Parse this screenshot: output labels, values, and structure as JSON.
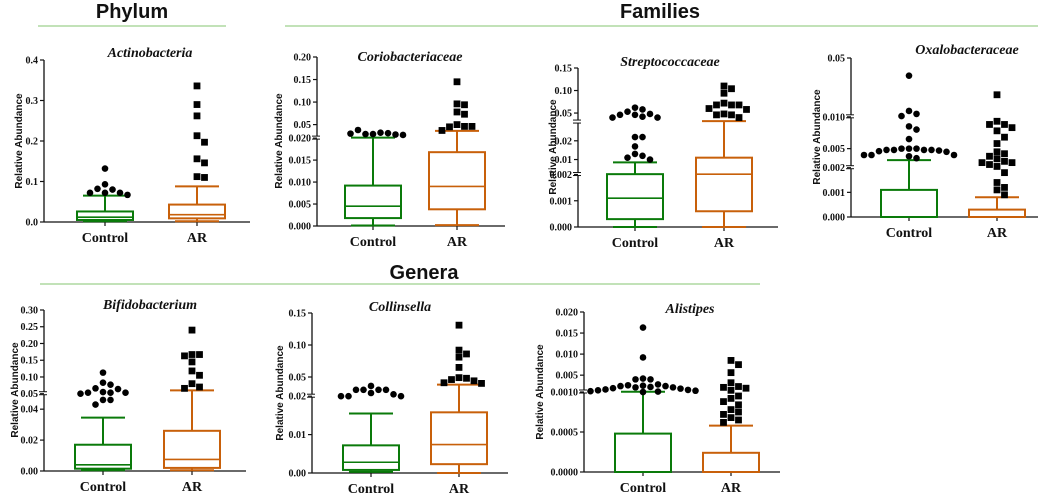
{
  "sections": [
    {
      "id": "phylum",
      "title": "Phylum"
    },
    {
      "id": "families",
      "title": "Families"
    },
    {
      "id": "genera",
      "title": "Genera"
    }
  ],
  "colors": {
    "control": "#0a7a0a",
    "ar": "#c8600a",
    "points": "#000000",
    "separator": "#9ed08e"
  },
  "chart_data": [
    {
      "type": "box",
      "section": "Phylum",
      "title": "Actinobacteria",
      "ylabel": "Relative Abundance",
      "categories": [
        "Control",
        "AR"
      ],
      "axis_breaks": [],
      "yticks": [
        0.0,
        0.1,
        0.2,
        0.3,
        0.4
      ],
      "ytick_labels": [
        "0.0",
        "0.1",
        "0.2",
        "0.3",
        "0.4"
      ],
      "ylim": [
        0,
        0.4
      ],
      "series": [
        {
          "name": "Control",
          "whisker_low": 0.002,
          "q1": 0.005,
          "median": 0.012,
          "q3": 0.026,
          "whisker_high": 0.065,
          "outliers": [
            0.132,
            0.093,
            0.08,
            0.082,
            0.072,
            0.072,
            0.072,
            0.067
          ]
        },
        {
          "name": "AR",
          "whisker_low": 0.002,
          "q1": 0.009,
          "median": 0.018,
          "q3": 0.043,
          "whisker_high": 0.088,
          "outliers": [
            0.336,
            0.29,
            0.262,
            0.213,
            0.197,
            0.156,
            0.146,
            0.112,
            0.11
          ]
        }
      ]
    },
    {
      "type": "box",
      "section": "Families",
      "title": "Coriobacteriaceae",
      "ylabel": "Relative Abundance",
      "categories": [
        "Control",
        "AR"
      ],
      "axis_breaks": [
        0.02
      ],
      "segments": [
        {
          "range": [
            0,
            0.02
          ],
          "share": 0.52
        },
        {
          "range": [
            0.02,
            0.2
          ],
          "share": 0.48
        }
      ],
      "yticks": [
        0,
        0.005,
        0.01,
        0.015,
        0.02,
        0.05,
        0.1,
        0.15,
        0.2
      ],
      "ytick_labels": [
        "0.000",
        "0.005",
        "0.010",
        "0.015",
        "0.020",
        "0.05",
        "0.10",
        "0.15",
        "0.20"
      ],
      "ylim": [
        0,
        0.2
      ],
      "series": [
        {
          "name": "Control",
          "whisker_low": 0.0001,
          "q1": 0.0018,
          "median": 0.0045,
          "q3": 0.0092,
          "whisker_high": 0.0212,
          "outliers": [
            0.029,
            0.032,
            0.029,
            0.031,
            0.038,
            0.028,
            0.03,
            0.027
          ]
        },
        {
          "name": "AR",
          "whisker_low": 0.0002,
          "q1": 0.0038,
          "median": 0.009,
          "q3": 0.0168,
          "whisker_high": 0.036,
          "outliers": [
            0.145,
            0.096,
            0.094,
            0.078,
            0.073,
            0.05,
            0.046,
            0.045,
            0.046,
            0.037
          ]
        }
      ]
    },
    {
      "type": "box",
      "section": "Families",
      "title": "Streptococcaceae",
      "ylabel": "Relative Abundance",
      "categories": [
        "Control",
        "AR"
      ],
      "axis_breaks": [
        0.002,
        0.03
      ],
      "segments": [
        {
          "range": [
            0,
            0.002
          ],
          "share": 0.33
        },
        {
          "range": [
            0.002,
            0.03
          ],
          "share": 0.33
        },
        {
          "range": [
            0.03,
            0.15
          ],
          "share": 0.34
        }
      ],
      "yticks": [
        0,
        0.001,
        0.002,
        0.01,
        0.02,
        0.05,
        0.1,
        0.15
      ],
      "ytick_labels": [
        "0.000",
        "0.001",
        "0.002",
        "0.01",
        "0.02",
        "0.05",
        "0.10",
        "0.15"
      ],
      "ylim": [
        0,
        0.15
      ],
      "series": [
        {
          "name": "Control",
          "whisker_low": 0.0,
          "q1": 0.0003,
          "median": 0.0011,
          "q3": 0.0022,
          "whisker_high": 0.0085,
          "outliers": [
            0.062,
            0.058,
            0.053,
            0.048,
            0.046,
            0.046,
            0.042,
            0.04,
            0.04,
            0.022,
            0.022,
            0.017,
            0.013,
            0.012,
            0.011,
            0.01
          ]
        },
        {
          "name": "AR",
          "whisker_low": 0.0,
          "q1": 0.0006,
          "median": 0.0022,
          "q3": 0.011,
          "whisker_high": 0.032,
          "outliers": [
            0.11,
            0.104,
            0.094,
            0.072,
            0.068,
            0.068,
            0.068,
            0.06,
            0.058,
            0.048,
            0.046,
            0.046,
            0.04
          ]
        }
      ]
    },
    {
      "type": "box",
      "section": "Families",
      "title": "Oxalobacteraceae",
      "ylabel": "Relative Abundance",
      "categories": [
        "Control",
        "AR"
      ],
      "axis_breaks": [
        0.002,
        0.01
      ],
      "segments": [
        {
          "range": [
            0,
            0.002
          ],
          "share": 0.31
        },
        {
          "range": [
            0.002,
            0.01
          ],
          "share": 0.32
        },
        {
          "range": [
            0.01,
            0.05
          ],
          "share": 0.37
        }
      ],
      "yticks": [
        0,
        0.001,
        0.002,
        0.005,
        0.01,
        0.05
      ],
      "ytick_labels": [
        "0.000",
        "0.001",
        "0.002",
        "0.005",
        "0.010",
        "0.05"
      ],
      "ylim": [
        0,
        0.05
      ],
      "series": [
        {
          "name": "Control",
          "whisker_low": 0.0,
          "q1": 0.0,
          "median": 0.0,
          "q3": 0.0011,
          "whisker_high": 0.0032,
          "outliers": [
            0.038,
            0.014,
            0.012,
            0.0105,
            0.0085,
            0.008,
            0.0065,
            0.005,
            0.005,
            0.005,
            0.0048,
            0.0048,
            0.0048,
            0.0048,
            0.0047,
            0.0046,
            0.0045,
            0.004,
            0.004,
            0.004,
            0.0038,
            0.0035
          ]
        },
        {
          "name": "AR",
          "whisker_low": 0.0,
          "q1": 0.0,
          "median": 0.0,
          "q3": 0.0003,
          "whisker_high": 0.0008,
          "outliers": [
            0.025,
            0.0093,
            0.0088,
            0.0088,
            0.0083,
            0.0078,
            0.0068,
            0.0058,
            0.0045,
            0.0042,
            0.0038,
            0.0034,
            0.003,
            0.0028,
            0.0028,
            0.0025,
            0.0022,
            0.0018,
            0.0014,
            0.0012,
            0.0011,
            0.0009
          ]
        }
      ]
    },
    {
      "type": "box",
      "section": "Genera",
      "title": "Bifidobacterium",
      "ylabel": "Relative Abundance",
      "categories": [
        "Control",
        "AR"
      ],
      "axis_breaks": [
        0.05
      ],
      "segments": [
        {
          "range": [
            0,
            0.05
          ],
          "share": 0.48
        },
        {
          "range": [
            0.05,
            0.3
          ],
          "share": 0.52
        }
      ],
      "yticks": [
        0,
        0.02,
        0.04,
        0.05,
        0.1,
        0.15,
        0.2,
        0.25,
        0.3
      ],
      "ytick_labels": [
        "0.00",
        "0.02",
        "0.04",
        "0.05",
        "0.10",
        "0.15",
        "0.20",
        "0.25",
        "0.30"
      ],
      "ylim": [
        0,
        0.3
      ],
      "series": [
        {
          "name": "Control",
          "whisker_low": 0.0005,
          "q1": 0.0015,
          "median": 0.004,
          "q3": 0.017,
          "whisker_high": 0.0345,
          "outliers": [
            0.113,
            0.083,
            0.077,
            0.066,
            0.064,
            0.055,
            0.053,
            0.053,
            0.053,
            0.05,
            0.046,
            0.046,
            0.043
          ]
        },
        {
          "name": "AR",
          "whisker_low": 0.0005,
          "q1": 0.002,
          "median": 0.0075,
          "q3": 0.026,
          "whisker_high": 0.06,
          "outliers": [
            0.24,
            0.167,
            0.167,
            0.163,
            0.145,
            0.118,
            0.105,
            0.08,
            0.07,
            0.066
          ]
        }
      ]
    },
    {
      "type": "box",
      "section": "Genera",
      "title": "Collinsella",
      "ylabel": "Relative Abundance",
      "categories": [
        "Control",
        "AR"
      ],
      "axis_breaks": [
        0.02
      ],
      "segments": [
        {
          "range": [
            0,
            0.02
          ],
          "share": 0.48
        },
        {
          "range": [
            0.02,
            0.15
          ],
          "share": 0.52
        }
      ],
      "yticks": [
        0,
        0.01,
        0.02,
        0.05,
        0.1,
        0.15
      ],
      "ytick_labels": [
        "0.00",
        "0.01",
        "0.02",
        "0.05",
        "0.10",
        "0.15"
      ],
      "ylim": [
        0,
        0.15
      ],
      "series": [
        {
          "name": "Control",
          "whisker_low": 0.0003,
          "q1": 0.0008,
          "median": 0.0028,
          "q3": 0.0072,
          "whisker_high": 0.0155,
          "outliers": [
            0.036,
            0.03,
            0.03,
            0.03,
            0.03,
            0.025,
            0.023,
            0.02,
            0.02,
            0.02
          ]
        },
        {
          "name": "AR",
          "whisker_low": 0.0,
          "q1": 0.0023,
          "median": 0.0074,
          "q3": 0.0158,
          "whisker_high": 0.038,
          "outliers": [
            0.131,
            0.092,
            0.086,
            0.081,
            0.065,
            0.049,
            0.048,
            0.046,
            0.044,
            0.041,
            0.04
          ]
        }
      ]
    },
    {
      "type": "box",
      "section": "Genera",
      "title": "Alistipes",
      "ylabel": "Relative Abundance",
      "categories": [
        "Control",
        "AR"
      ],
      "axis_breaks": [
        0.001
      ],
      "segments": [
        {
          "range": [
            0,
            0.001
          ],
          "share": 0.5
        },
        {
          "range": [
            0.001,
            0.02
          ],
          "share": 0.5
        }
      ],
      "yticks": [
        0,
        0.0005,
        0.001,
        0.005,
        0.01,
        0.015,
        0.02
      ],
      "ytick_labels": [
        "0.0000",
        "0.0005",
        "0.0010",
        "0.005",
        "0.010",
        "0.015",
        "0.020"
      ],
      "ylim": [
        0,
        0.02
      ],
      "series": [
        {
          "name": "Control",
          "whisker_low": 0.0,
          "q1": 0.0,
          "median": 0.0,
          "q3": 0.00048,
          "whisker_high": 0.00105,
          "outliers": [
            0.0163,
            0.0092,
            0.0042,
            0.004,
            0.004,
            0.0028,
            0.0026,
            0.0025,
            0.0024,
            0.0024,
            0.0022,
            0.0021,
            0.0021,
            0.0019,
            0.0018,
            0.0016,
            0.0015,
            0.0014,
            0.0013,
            0.0012,
            0.0011,
            0.001
          ]
        },
        {
          "name": "AR",
          "whisker_low": 0.0,
          "q1": 0.0,
          "median": 0.0,
          "q3": 0.00024,
          "whisker_high": 0.00058,
          "outliers": [
            0.0085,
            0.0075,
            0.0056,
            0.0032,
            0.0023,
            0.0021,
            0.0019,
            0.0014,
            0.00095,
            0.00092,
            0.00088,
            0.00084,
            0.00078,
            0.00075,
            0.00072,
            0.00068,
            0.00065,
            0.00062
          ]
        }
      ]
    }
  ]
}
